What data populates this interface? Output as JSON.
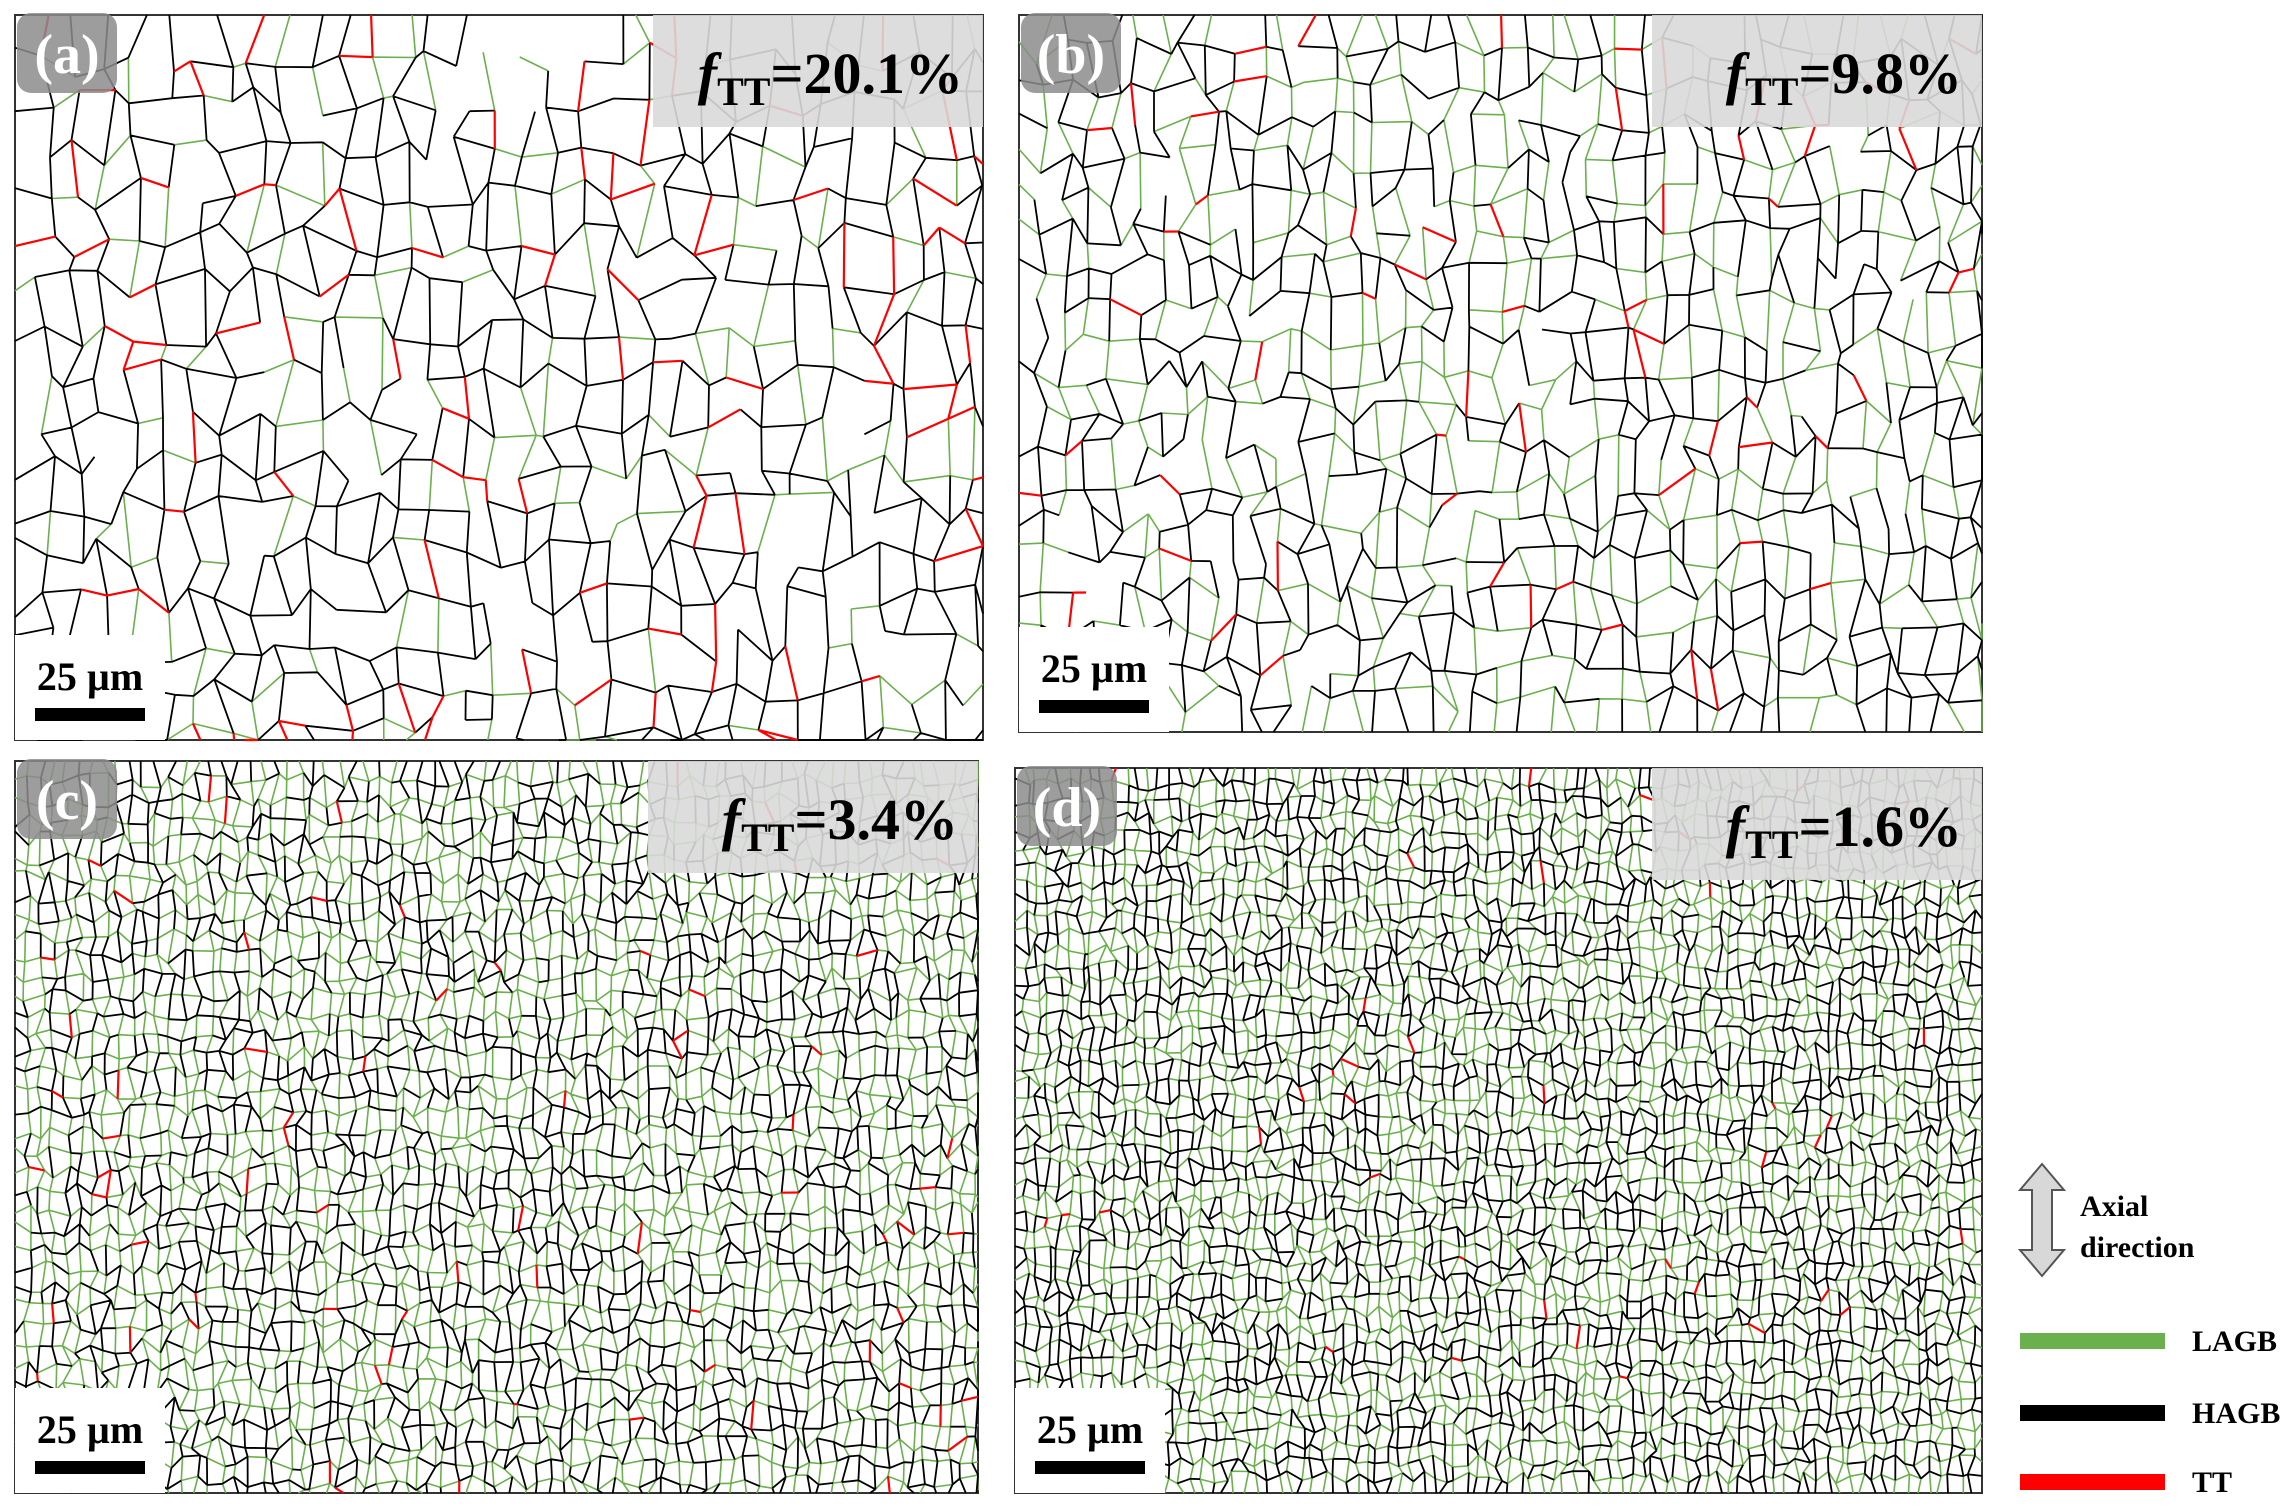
{
  "panels": [
    {
      "label": "(a)",
      "symbol": "f",
      "subscript": "TT",
      "value": "=20.1%",
      "scale_bar": "25 µm"
    },
    {
      "label": "(b)",
      "symbol": "f",
      "subscript": "TT",
      "value": "=9.8%",
      "scale_bar": "25 µm"
    },
    {
      "label": "(c)",
      "symbol": "f",
      "subscript": "TT",
      "value": "=3.4%",
      "scale_bar": "25 µm"
    },
    {
      "label": "(d)",
      "symbol": "f",
      "subscript": "TT",
      "value": "=1.6%",
      "scale_bar": "25 µm"
    }
  ],
  "legend": {
    "axial_label": [
      "Axial",
      "direction"
    ],
    "items": [
      {
        "name": "LAGB",
        "color": "#6ab04c"
      },
      {
        "name": "HAGB",
        "color": "#000000"
      },
      {
        "name": "TT",
        "color": "#ff0000"
      }
    ]
  }
}
